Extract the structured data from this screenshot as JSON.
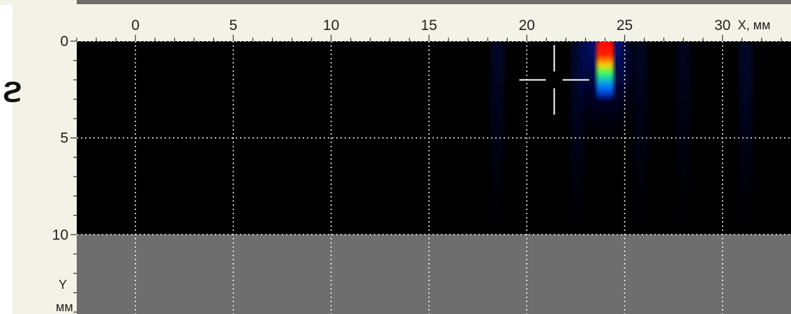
{
  "panel_label": "ϩ",
  "chart_data": {
    "type": "heatmap",
    "title": "",
    "xlabel": "X, мм",
    "ylabel_lines": [
      "Y",
      "мм"
    ],
    "x_ticks": [
      0,
      5,
      10,
      15,
      20,
      25,
      30
    ],
    "y_ticks": [
      0,
      5,
      10
    ],
    "xlim": [
      -3,
      33.5
    ],
    "ylim": [
      0,
      14.1
    ],
    "image_ylim": [
      0,
      10
    ],
    "grid": true,
    "colormap": "jet",
    "background_color": "#000000",
    "outside_region_color": "#6e6e6e",
    "frame_color": "#f2f2e6",
    "hotspot": {
      "x_center": 24.0,
      "x_halfwidth": 0.45,
      "y_peak": 0.5,
      "y_extent": 3.2,
      "peak_intensity": 1.0
    },
    "weak_bands": [
      {
        "x": 18.5,
        "intensity": 0.18
      },
      {
        "x": 22.6,
        "intensity": 0.22
      },
      {
        "x": 25.8,
        "intensity": 0.16
      },
      {
        "x": 28.0,
        "intensity": 0.14
      },
      {
        "x": 31.2,
        "intensity": 0.2
      }
    ],
    "cursor": {
      "x": 21.4,
      "y": 2.0
    }
  }
}
